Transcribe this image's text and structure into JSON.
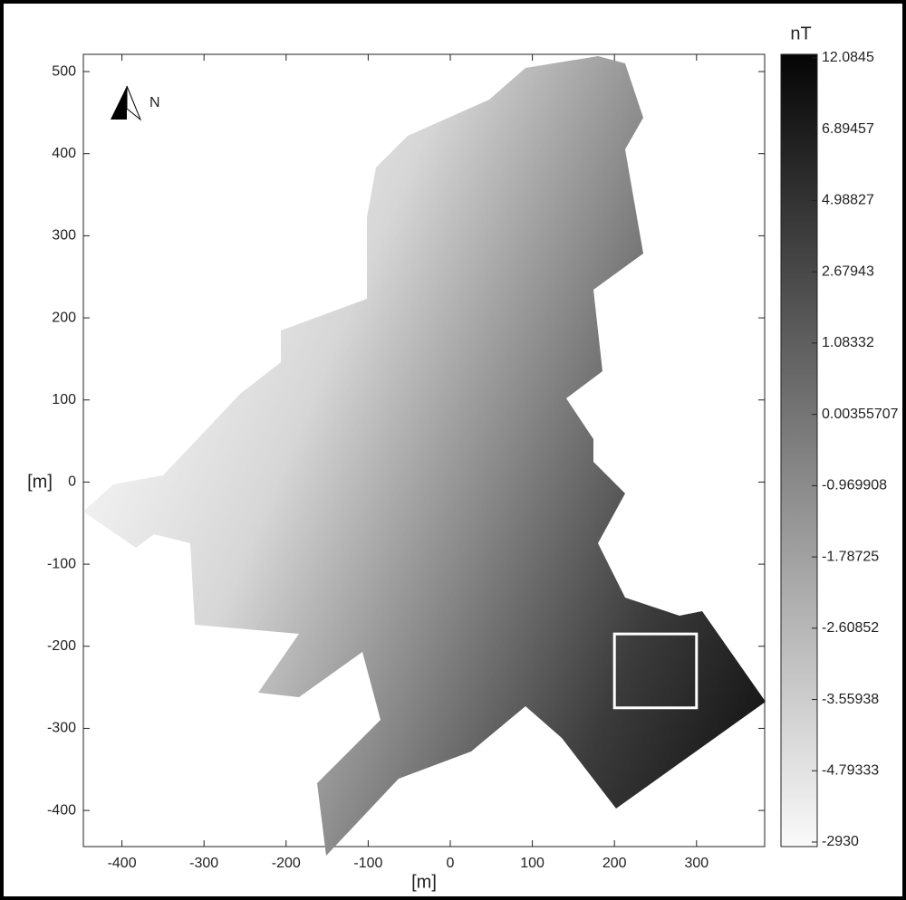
{
  "chart_data": {
    "type": "map",
    "x_label": "[m]",
    "y_label": "[m]",
    "colorbar_label": "nT",
    "north_label": "N",
    "xlim": [
      -447,
      383
    ],
    "ylim": [
      -444,
      521
    ],
    "xticks": [
      -400,
      -300,
      -200,
      -100,
      0,
      100,
      200,
      300
    ],
    "yticks": [
      -400,
      -300,
      -200,
      -100,
      0,
      100,
      200,
      300,
      400,
      500
    ],
    "colorbar_ticks": [
      12.0845,
      6.89457,
      4.98827,
      2.67943,
      1.08332,
      0.00355707,
      -0.969908,
      -1.78725,
      -2.60852,
      -3.55938,
      -4.79333,
      -2930
    ],
    "highlight_box": {
      "x": [
        200,
        300
      ],
      "y": [
        -275,
        -185
      ]
    }
  }
}
